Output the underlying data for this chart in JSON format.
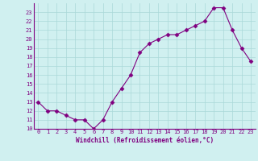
{
  "x": [
    0,
    1,
    2,
    3,
    4,
    5,
    6,
    7,
    8,
    9,
    10,
    11,
    12,
    13,
    14,
    15,
    16,
    17,
    18,
    19,
    20,
    21,
    22,
    23
  ],
  "y": [
    13,
    12,
    12,
    11.5,
    11,
    11,
    10,
    11,
    13,
    14.5,
    16,
    18.5,
    19.5,
    20,
    20.5,
    20.5,
    21,
    21.5,
    22,
    23.5,
    23.5,
    21,
    19,
    17.5
  ],
  "line_color": "#800080",
  "marker": "D",
  "marker_size": 2.5,
  "bg_color": "#d0f0f0",
  "grid_color": "#aad8d8",
  "xlabel": "Windchill (Refroidissement éolien,°C)",
  "ylim": [
    10,
    24
  ],
  "xlim": [
    -0.5,
    23.5
  ],
  "yticks": [
    10,
    11,
    12,
    13,
    14,
    15,
    16,
    17,
    18,
    19,
    20,
    21,
    22,
    23
  ],
  "xticks": [
    0,
    1,
    2,
    3,
    4,
    5,
    6,
    7,
    8,
    9,
    10,
    11,
    12,
    13,
    14,
    15,
    16,
    17,
    18,
    19,
    20,
    21,
    22,
    23
  ]
}
